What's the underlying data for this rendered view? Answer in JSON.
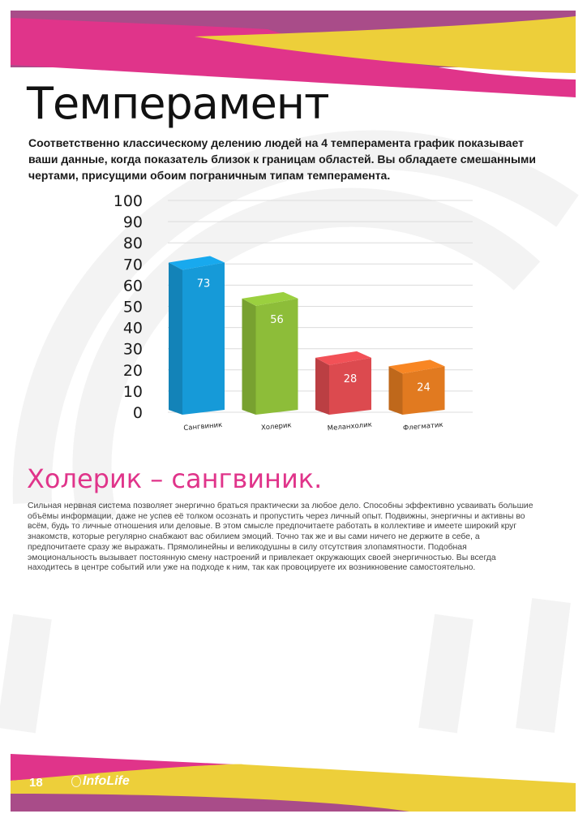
{
  "header": {
    "title": "Темперамент",
    "intro_lines": [
      "Соответственно классическому делению людей на 4 темперамента график показывает",
      "ваши данные, когда показатель близок к границам областей. Вы обладаете смешанными",
      "чертами, присущими обоим пограничным типам темперамента."
    ]
  },
  "colors": {
    "magenta": "#e0348a",
    "purple": "#a94c89",
    "yellow": "#edcf3a",
    "subtitle": "#e0348a"
  },
  "chart_data": {
    "type": "bar",
    "style": "3d",
    "categories": [
      "Сангвиник",
      "Холерик",
      "Меланхолик",
      "Флегматик"
    ],
    "values": [
      73,
      56,
      28,
      24
    ],
    "data_labels": [
      "73",
      "56",
      "28",
      "24"
    ],
    "colors": [
      "#169ad8",
      "#8dbd39",
      "#dc4a4f",
      "#e17a20"
    ],
    "ylim": [
      0,
      100
    ],
    "yticks": [
      0,
      10,
      20,
      30,
      40,
      50,
      60,
      70,
      80,
      90,
      100
    ],
    "grid": true,
    "legend": "none"
  },
  "result": {
    "heading": "Холерик – сангвиник.",
    "lines": [
      "Сильная нервная система позволяет энергично браться практически за любое дело. Способны эффективно усваивать большие",
      "объёмы информации, даже не успев её толком осознать и пропустить через личный опыт. Подвижны, энергичны и активны во",
      "всём, будь то личные отношения или деловые. В этом смысле предпочитаете работать в коллективе и имеете широкий круг",
      "знакомств, которые регулярно снабжают вас обилием эмоций. Точно так же и вы сами ничего не держите в себе, а",
      "предпочитаете сразу же выражать. Прямолинейны и великодушны в силу отсутствия злопамятности. Подобная",
      "эмоциональность вызывает постоянную смену настроений и привлекает окружающих своей энергичностью. Вы всегда",
      "находитесь в центре событий или уже на подходе к ним, так как провоцируете их возникновение самостоятельно."
    ]
  },
  "footer": {
    "page_number": "18",
    "logo_text": "InfoLife"
  }
}
